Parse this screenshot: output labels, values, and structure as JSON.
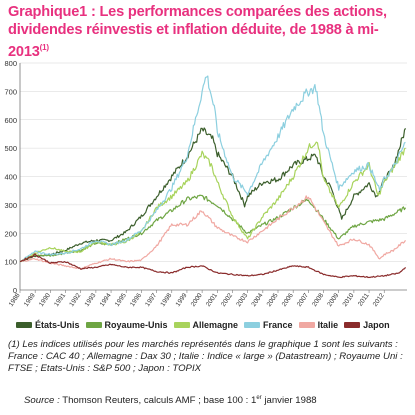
{
  "title": {
    "line1": "Graphique1 : Les performances comparées des actions,",
    "line2": "dividendes réinvestis et inflation déduite, de 1988 à mi-2013",
    "sup": "(1)"
  },
  "note": "(1) Les indices utilisés pour les marchés représentés dans le graphique 1 sont les suivants : France : CAC 40 ; Allemagne : Dax 30 ; Italie : Indice « large » (Datastream) ; Royaume Uni : FTSE ; Etats-Unis : S&P 500 ; Japon : TOPIX",
  "source": {
    "label": "Source :",
    "text": "Thomson Reuters, calculs AMF ; base 100 : 1",
    "sup": "er",
    "text_end": " janvier 1988"
  },
  "chart_data": {
    "type": "line",
    "ylim": [
      0,
      800
    ],
    "yticks": [
      0,
      100,
      200,
      300,
      400,
      500,
      600,
      700,
      800
    ],
    "xlim": [
      1988,
      2013.5
    ],
    "xticks": [
      "1988",
      "1989",
      "1990",
      "1991",
      "1992",
      "1993",
      "1994",
      "1995",
      "1996",
      "1997",
      "1998",
      "1999",
      "2000",
      "2001",
      "2002",
      "2003",
      "2004",
      "2005",
      "2006",
      "2007",
      "2008",
      "2009",
      "2010",
      "2011",
      "2012"
    ],
    "grid": true,
    "legend_position": "bottom",
    "series": [
      {
        "name": "États-Unis",
        "color": "#3b5e2b",
        "points": [
          [
            1988,
            100
          ],
          [
            1989,
            120
          ],
          [
            1990,
            125
          ],
          [
            1991,
            140
          ],
          [
            1992,
            165
          ],
          [
            1993,
            175
          ],
          [
            1994,
            175
          ],
          [
            1995,
            205
          ],
          [
            1996,
            260
          ],
          [
            1997,
            330
          ],
          [
            1998,
            400
          ],
          [
            1999,
            470
          ],
          [
            2000,
            565
          ],
          [
            2000.7,
            530
          ],
          [
            2001,
            480
          ],
          [
            2002,
            400
          ],
          [
            2002.8,
            300
          ],
          [
            2003,
            330
          ],
          [
            2004,
            380
          ],
          [
            2005,
            390
          ],
          [
            2006,
            440
          ],
          [
            2007.5,
            475
          ],
          [
            2008,
            400
          ],
          [
            2008.5,
            360
          ],
          [
            2009.2,
            250
          ],
          [
            2010,
            330
          ],
          [
            2011,
            375
          ],
          [
            2011.5,
            330
          ],
          [
            2012,
            390
          ],
          [
            2012.5,
            420
          ],
          [
            2013,
            500
          ],
          [
            2013.4,
            570
          ]
        ]
      },
      {
        "name": "Royaume-Unis",
        "color": "#6ea543",
        "points": [
          [
            1988,
            100
          ],
          [
            1989,
            125
          ],
          [
            1990,
            120
          ],
          [
            1991,
            130
          ],
          [
            1992,
            140
          ],
          [
            1993,
            165
          ],
          [
            1994,
            160
          ],
          [
            1995,
            180
          ],
          [
            1996,
            200
          ],
          [
            1997,
            245
          ],
          [
            1998,
            280
          ],
          [
            1999,
            320
          ],
          [
            2000,
            330
          ],
          [
            2001,
            300
          ],
          [
            2002,
            250
          ],
          [
            2003,
            200
          ],
          [
            2004,
            230
          ],
          [
            2005,
            255
          ],
          [
            2006,
            290
          ],
          [
            2007,
            320
          ],
          [
            2008,
            250
          ],
          [
            2009,
            180
          ],
          [
            2010,
            225
          ],
          [
            2011,
            240
          ],
          [
            2012,
            250
          ],
          [
            2013.4,
            290
          ]
        ]
      },
      {
        "name": "Allemagne",
        "color": "#a8d35c",
        "points": [
          [
            1988,
            100
          ],
          [
            1989,
            130
          ],
          [
            1990,
            150
          ],
          [
            1991,
            135
          ],
          [
            1992,
            135
          ],
          [
            1993,
            170
          ],
          [
            1994,
            160
          ],
          [
            1995,
            170
          ],
          [
            1996,
            205
          ],
          [
            1997,
            290
          ],
          [
            1998,
            330
          ],
          [
            1999,
            380
          ],
          [
            2000,
            480
          ],
          [
            2000.6,
            440
          ],
          [
            2001,
            380
          ],
          [
            2002,
            260
          ],
          [
            2003,
            180
          ],
          [
            2004,
            260
          ],
          [
            2005,
            320
          ],
          [
            2006,
            400
          ],
          [
            2007,
            500
          ],
          [
            2007.6,
            530
          ],
          [
            2008,
            390
          ],
          [
            2009,
            290
          ],
          [
            2010,
            380
          ],
          [
            2011,
            440
          ],
          [
            2011.6,
            330
          ],
          [
            2012,
            380
          ],
          [
            2012.6,
            430
          ],
          [
            2013.4,
            500
          ]
        ]
      },
      {
        "name": "France",
        "color": "#8ccfdf",
        "points": [
          [
            1988,
            100
          ],
          [
            1989,
            135
          ],
          [
            1990,
            125
          ],
          [
            1991,
            130
          ],
          [
            1992,
            145
          ],
          [
            1993,
            175
          ],
          [
            1994,
            160
          ],
          [
            1995,
            175
          ],
          [
            1996,
            210
          ],
          [
            1997,
            280
          ],
          [
            1998,
            360
          ],
          [
            1999,
            470
          ],
          [
            2000,
            700
          ],
          [
            2000.3,
            760
          ],
          [
            2000.8,
            640
          ],
          [
            2001,
            560
          ],
          [
            2002,
            400
          ],
          [
            2003,
            340
          ],
          [
            2004,
            450
          ],
          [
            2005,
            540
          ],
          [
            2006,
            640
          ],
          [
            2007,
            700
          ],
          [
            2007.5,
            715
          ],
          [
            2008,
            550
          ],
          [
            2009,
            360
          ],
          [
            2010,
            420
          ],
          [
            2011,
            440
          ],
          [
            2011.7,
            350
          ],
          [
            2012,
            390
          ],
          [
            2012.6,
            430
          ],
          [
            2013.4,
            520
          ]
        ]
      },
      {
        "name": "Italie",
        "color": "#f0a8a2",
        "points": [
          [
            1988,
            100
          ],
          [
            1989,
            110
          ],
          [
            1990,
            95
          ],
          [
            1991,
            85
          ],
          [
            1992,
            75
          ],
          [
            1993,
            95
          ],
          [
            1994,
            110
          ],
          [
            1995,
            100
          ],
          [
            1996,
            105
          ],
          [
            1997,
            155
          ],
          [
            1998,
            230
          ],
          [
            1999,
            230
          ],
          [
            2000,
            280
          ],
          [
            2001,
            220
          ],
          [
            2002,
            190
          ],
          [
            2003,
            170
          ],
          [
            2004,
            210
          ],
          [
            2005,
            250
          ],
          [
            2006,
            290
          ],
          [
            2007,
            330
          ],
          [
            2008,
            240
          ],
          [
            2009,
            155
          ],
          [
            2010,
            180
          ],
          [
            2011,
            160
          ],
          [
            2011.7,
            110
          ],
          [
            2012,
            125
          ],
          [
            2012.6,
            140
          ],
          [
            2013.4,
            175
          ]
        ]
      },
      {
        "name": "Japon",
        "color": "#8a2b2b",
        "points": [
          [
            1988,
            100
          ],
          [
            1989,
            125
          ],
          [
            1990,
            95
          ],
          [
            1991,
            100
          ],
          [
            1992,
            75
          ],
          [
            1993,
            80
          ],
          [
            1994,
            90
          ],
          [
            1995,
            80
          ],
          [
            1996,
            80
          ],
          [
            1997,
            65
          ],
          [
            1998,
            60
          ],
          [
            1999,
            80
          ],
          [
            2000,
            85
          ],
          [
            2001,
            60
          ],
          [
            2002,
            55
          ],
          [
            2003,
            50
          ],
          [
            2004,
            55
          ],
          [
            2005,
            70
          ],
          [
            2006,
            85
          ],
          [
            2007,
            80
          ],
          [
            2008,
            55
          ],
          [
            2009,
            45
          ],
          [
            2010,
            50
          ],
          [
            2011,
            45
          ],
          [
            2012,
            50
          ],
          [
            2013,
            60
          ],
          [
            2013.4,
            80
          ]
        ]
      }
    ]
  }
}
